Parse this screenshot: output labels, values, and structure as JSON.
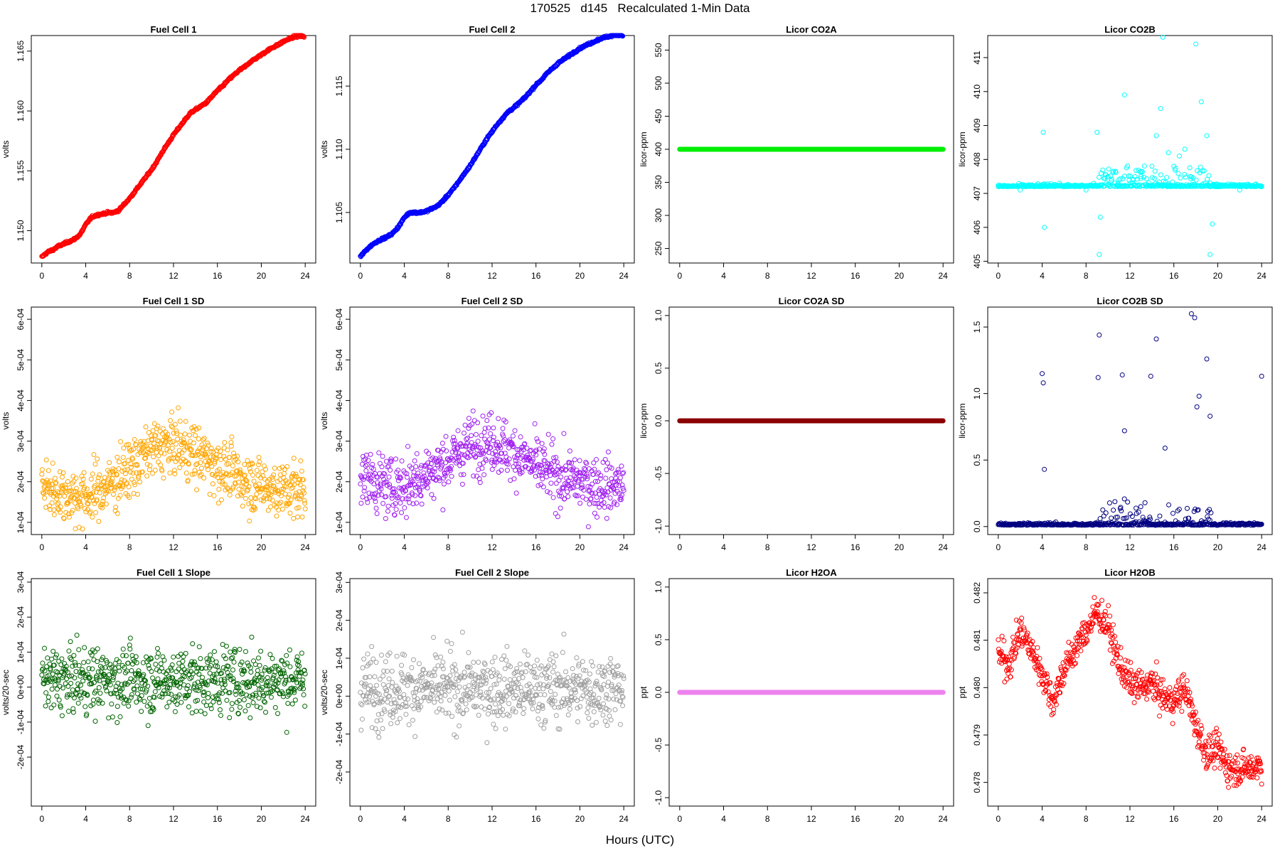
{
  "figure": {
    "title": "170525   d145   Recalculated 1-Min Data",
    "xlabel": "Hours (UTC)"
  },
  "chart_data": [
    {
      "id": "fc1",
      "type": "scatter",
      "title": "Fuel Cell 1",
      "ylabel": "volts",
      "color": "#ff0000",
      "xlim": [
        0,
        24
      ],
      "ylim": [
        1.1473,
        1.1663
      ],
      "xticks": [
        0,
        4,
        8,
        12,
        16,
        20,
        24
      ],
      "yticks": [
        "1.150",
        "1.155",
        "1.160",
        "1.165"
      ],
      "ytick_values": [
        1.15,
        1.155,
        1.16,
        1.165
      ],
      "x": [
        0,
        0.5,
        1,
        1.5,
        2,
        2.5,
        3,
        3.5,
        4,
        4.5,
        5,
        5.5,
        6,
        6.5,
        7,
        7.5,
        8,
        8.5,
        9,
        9.5,
        10,
        10.5,
        11,
        11.5,
        12,
        12.5,
        13,
        13.5,
        14,
        14.5,
        15,
        15.5,
        16,
        16.5,
        17,
        17.5,
        18,
        18.5,
        19,
        19.5,
        20,
        20.5,
        21,
        21.5,
        22,
        22.5,
        23,
        23.5,
        23.9
      ],
      "y": [
        1.1478,
        1.1482,
        1.1484,
        1.1487,
        1.1489,
        1.1491,
        1.1493,
        1.1497,
        1.1505,
        1.1511,
        1.1513,
        1.1514,
        1.1515,
        1.1515,
        1.1517,
        1.1522,
        1.1527,
        1.1533,
        1.1539,
        1.1545,
        1.1551,
        1.1558,
        1.1566,
        1.1573,
        1.158,
        1.1586,
        1.1592,
        1.1598,
        1.1601,
        1.1604,
        1.1607,
        1.1612,
        1.1617,
        1.1621,
        1.1626,
        1.163,
        1.1634,
        1.1637,
        1.1641,
        1.1644,
        1.1647,
        1.165,
        1.1653,
        1.1655,
        1.1658,
        1.166,
        1.1662,
        1.1663,
        1.1662
      ],
      "note_style": "dense"
    },
    {
      "id": "fc2",
      "type": "scatter",
      "title": "Fuel Cell 2",
      "ylabel": "volts",
      "color": "#0000ff",
      "xlim": [
        0,
        24
      ],
      "ylim": [
        1.101,
        1.119
      ],
      "xticks": [
        0,
        4,
        8,
        12,
        16,
        20,
        24
      ],
      "yticks": [
        "1.105",
        "1.110",
        "1.115"
      ],
      "ytick_values": [
        1.105,
        1.11,
        1.115
      ],
      "x": [
        0,
        0.5,
        1,
        1.5,
        2,
        2.5,
        3,
        3.5,
        4,
        4.5,
        5,
        5.5,
        6,
        6.5,
        7,
        7.5,
        8,
        8.5,
        9,
        9.5,
        10,
        10.5,
        11,
        11.5,
        12,
        12.5,
        13,
        13.5,
        14,
        14.5,
        15,
        15.5,
        16,
        16.5,
        17,
        17.5,
        18,
        18.5,
        19,
        19.5,
        20,
        20.5,
        21,
        21.5,
        22,
        22.5,
        23,
        23.5,
        23.9
      ],
      "y": [
        1.1015,
        1.102,
        1.1024,
        1.1027,
        1.1029,
        1.1031,
        1.1034,
        1.1039,
        1.1046,
        1.105,
        1.105,
        1.105,
        1.1051,
        1.1053,
        1.1055,
        1.1059,
        1.1064,
        1.1069,
        1.1075,
        1.1081,
        1.1087,
        1.1094,
        1.1101,
        1.1108,
        1.1114,
        1.112,
        1.1125,
        1.113,
        1.1133,
        1.1137,
        1.1141,
        1.1146,
        1.1151,
        1.1155,
        1.116,
        1.1164,
        1.1168,
        1.1171,
        1.1174,
        1.1177,
        1.118,
        1.1182,
        1.1184,
        1.1186,
        1.1188,
        1.1189,
        1.119,
        1.1191,
        1.119
      ],
      "note_style": "dense"
    },
    {
      "id": "co2a",
      "type": "scatter",
      "title": "Licor CO2A",
      "ylabel": "licor-ppm",
      "color": "#00ee00",
      "xlim": [
        0,
        24
      ],
      "ylim": [
        228,
        572
      ],
      "xticks": [
        0,
        4,
        8,
        12,
        16,
        20,
        24
      ],
      "yticks": [
        "250",
        "300",
        "350",
        "400",
        "450",
        "500",
        "550"
      ],
      "ytick_values": [
        250,
        300,
        350,
        400,
        450,
        500,
        550
      ],
      "x": [
        0,
        24
      ],
      "y": [
        400,
        400
      ],
      "note_style": "flat"
    },
    {
      "id": "co2b",
      "type": "scatter",
      "title": "Licor CO2B",
      "ylabel": "licor-ppm",
      "color": "#00ffff",
      "xlim": [
        0,
        24
      ],
      "ylim": [
        404.95,
        411.65
      ],
      "xticks": [
        0,
        4,
        8,
        12,
        16,
        20,
        24
      ],
      "yticks": [
        "405",
        "406",
        "407",
        "408",
        "409",
        "410",
        "411"
      ],
      "ytick_values": [
        405,
        406,
        407,
        408,
        409,
        410,
        411
      ],
      "x": [
        0,
        2,
        4,
        4.1,
        4.2,
        6,
        8,
        9,
        9.2,
        9.3,
        10,
        11,
        11.5,
        12,
        13,
        14,
        14.4,
        14.8,
        15,
        15.5,
        16,
        16.5,
        17,
        17.5,
        18,
        18.5,
        19,
        19.3,
        19.5,
        20,
        22,
        24
      ],
      "y": [
        407.2,
        407.1,
        407.2,
        408.8,
        406.0,
        407.2,
        407.1,
        408.8,
        405.2,
        406.3,
        407.5,
        407.4,
        409.9,
        407.3,
        407.5,
        407.8,
        408.7,
        409.5,
        411.6,
        408.2,
        407.8,
        408.1,
        408.3,
        407.5,
        411.4,
        409.7,
        408.7,
        405.2,
        406.1,
        407.2,
        407.1,
        407.2
      ],
      "note_style": "baseline-spikes",
      "baseline": 407.2
    },
    {
      "id": "fc1sd",
      "type": "scatter",
      "title": "Fuel Cell 1 SD",
      "ylabel": "volts",
      "color": "#ffa500",
      "xlim": [
        0,
        24
      ],
      "ylim": [
        7e-05,
        0.00063
      ],
      "xticks": [
        0,
        4,
        8,
        12,
        16,
        20,
        24
      ],
      "yticks": [
        "1e-04",
        "2e-04",
        "3e-04",
        "4e-04",
        "5e-04",
        "6e-04"
      ],
      "ytick_values": [
        0.0001,
        0.0002,
        0.0003,
        0.0004,
        0.0005,
        0.0006
      ],
      "x": [
        0,
        2,
        4,
        6,
        8,
        10,
        12,
        14,
        16,
        18,
        20,
        22,
        24
      ],
      "y": [
        0.00019,
        0.00017,
        0.00016,
        0.00019,
        0.00023,
        0.00028,
        0.00029,
        0.00027,
        0.00024,
        0.00021,
        0.00019,
        0.00018,
        0.00018
      ],
      "note_style": "noisy",
      "spread": 0.00012
    },
    {
      "id": "fc2sd",
      "type": "scatter",
      "title": "Fuel Cell 2 SD",
      "ylabel": "volts",
      "color": "#a020f0",
      "xlim": [
        0,
        24
      ],
      "ylim": [
        7e-05,
        0.00063
      ],
      "xticks": [
        0,
        4,
        8,
        12,
        16,
        20,
        24
      ],
      "yticks": [
        "1e-04",
        "2e-04",
        "3e-04",
        "4e-04",
        "5e-04",
        "6e-04"
      ],
      "ytick_values": [
        0.0001,
        0.0002,
        0.0003,
        0.0004,
        0.0005,
        0.0006
      ],
      "x": [
        0,
        2,
        4,
        6,
        8,
        10,
        12,
        14,
        16,
        18,
        20,
        22,
        24
      ],
      "y": [
        0.00022,
        0.00019,
        0.00019,
        0.00022,
        0.00025,
        0.00029,
        0.0003,
        0.00027,
        0.00024,
        0.00021,
        0.0002,
        0.00019,
        0.00019
      ],
      "note_style": "noisy",
      "spread": 0.00012
    },
    {
      "id": "co2asd",
      "type": "scatter",
      "title": "Licor CO2A SD",
      "ylabel": "licor-ppm",
      "color": "#8b0000",
      "xlim": [
        0,
        24
      ],
      "ylim": [
        -1.08,
        1.08
      ],
      "xticks": [
        0,
        4,
        8,
        12,
        16,
        20,
        24
      ],
      "yticks": [
        "-1.0",
        "-0.5",
        "0.0",
        "0.5",
        "1.0"
      ],
      "ytick_values": [
        -1,
        -0.5,
        0,
        0.5,
        1
      ],
      "x": [
        0,
        24
      ],
      "y": [
        0,
        0
      ],
      "note_style": "flat"
    },
    {
      "id": "co2bsd",
      "type": "scatter",
      "title": "Licor CO2B SD",
      "ylabel": "licor-ppm",
      "color": "#000080",
      "xlim": [
        0,
        24
      ],
      "ylim": [
        -0.06,
        1.65
      ],
      "xticks": [
        0,
        4,
        8,
        12,
        16,
        20,
        24
      ],
      "yticks": [
        "0.0",
        "0.5",
        "1.0",
        "1.5"
      ],
      "ytick_values": [
        0,
        0.5,
        1,
        1.5
      ],
      "x": [
        4,
        4.1,
        4.2,
        9.1,
        9.2,
        11.3,
        11.5,
        13.9,
        14.4,
        15.2,
        17.6,
        17.9,
        18.1,
        18.3,
        19,
        19.3,
        24
      ],
      "y": [
        1.15,
        1.08,
        0.43,
        1.12,
        1.44,
        1.14,
        0.72,
        1.13,
        1.41,
        0.59,
        1.6,
        1.57,
        0.9,
        0.98,
        1.26,
        0.83,
        1.13
      ],
      "note_style": "baseline-spikes",
      "baseline": 0.01
    },
    {
      "id": "fc1slope",
      "type": "scatter",
      "title": "Fuel Cell 1 Slope",
      "ylabel": "volts/20-sec",
      "color": "#006400",
      "xlim": [
        0,
        24
      ],
      "ylim": [
        -0.00034,
        0.00031
      ],
      "xticks": [
        0,
        4,
        8,
        12,
        16,
        20,
        24
      ],
      "yticks": [
        "-2e-04",
        "-1e-04",
        "0e+00",
        "1e-04",
        "2e-04",
        "3e-04"
      ],
      "ytick_values": [
        -0.0002,
        -0.0001,
        0,
        0.0001,
        0.0002,
        0.0003
      ],
      "x": [
        0,
        24
      ],
      "y": [
        2e-05,
        2e-05
      ],
      "note_style": "noisy",
      "spread": 0.00016
    },
    {
      "id": "fc2slope",
      "type": "scatter",
      "title": "Fuel Cell 2 Slope",
      "ylabel": "volts/20-sec",
      "color": "#a0a0a0",
      "xlim": [
        0,
        24
      ],
      "ylim": [
        -0.00029,
        0.00031
      ],
      "xticks": [
        0,
        4,
        8,
        12,
        16,
        20,
        24
      ],
      "yticks": [
        "-2e-04",
        "-1e-04",
        "0e+00",
        "1e-04",
        "2e-04",
        "3e-04"
      ],
      "ytick_values": [
        -0.0002,
        -0.0001,
        0,
        0.0001,
        0.0002,
        0.0003
      ],
      "x": [
        0,
        24
      ],
      "y": [
        2e-05,
        2e-05
      ],
      "note_style": "noisy",
      "spread": 0.00016
    },
    {
      "id": "h2oa",
      "type": "scatter",
      "title": "Licor H2OA",
      "ylabel": "ppt",
      "color": "#ee82ee",
      "xlim": [
        0,
        24
      ],
      "ylim": [
        -1.08,
        1.08
      ],
      "xticks": [
        0,
        4,
        8,
        12,
        16,
        20,
        24
      ],
      "yticks": [
        "-1.0",
        "-0.5",
        "0.0",
        "0.5",
        "1.0"
      ],
      "ytick_values": [
        -1,
        -0.5,
        0,
        0.5,
        1
      ],
      "x": [
        0,
        24
      ],
      "y": [
        0,
        0
      ],
      "note_style": "flat"
    },
    {
      "id": "h2ob",
      "type": "scatter",
      "title": "Licor H2OB",
      "ylabel": "ppt",
      "color": "#ff0000",
      "xlim": [
        0,
        24
      ],
      "ylim": [
        0.4775,
        0.4823
      ],
      "xticks": [
        0,
        4,
        8,
        12,
        16,
        20,
        24
      ],
      "yticks": [
        "0.478",
        "0.479",
        "0.480",
        "0.481",
        "0.482"
      ],
      "ytick_values": [
        0.478,
        0.479,
        0.48,
        0.481,
        0.482
      ],
      "x": [
        0,
        1,
        2,
        3,
        4,
        5,
        6,
        7,
        8,
        9,
        10,
        11,
        12,
        13,
        14,
        15,
        16,
        17,
        18,
        19,
        20,
        21,
        22,
        23,
        24
      ],
      "y": [
        0.4807,
        0.4805,
        0.4812,
        0.4808,
        0.4803,
        0.4797,
        0.4804,
        0.4808,
        0.4812,
        0.4816,
        0.4813,
        0.4805,
        0.4801,
        0.48,
        0.4801,
        0.4798,
        0.4797,
        0.48,
        0.4792,
        0.4786,
        0.4787,
        0.4783,
        0.4783,
        0.4783,
        0.4784
      ],
      "note_style": "noisy",
      "spread": 0.0006
    }
  ]
}
